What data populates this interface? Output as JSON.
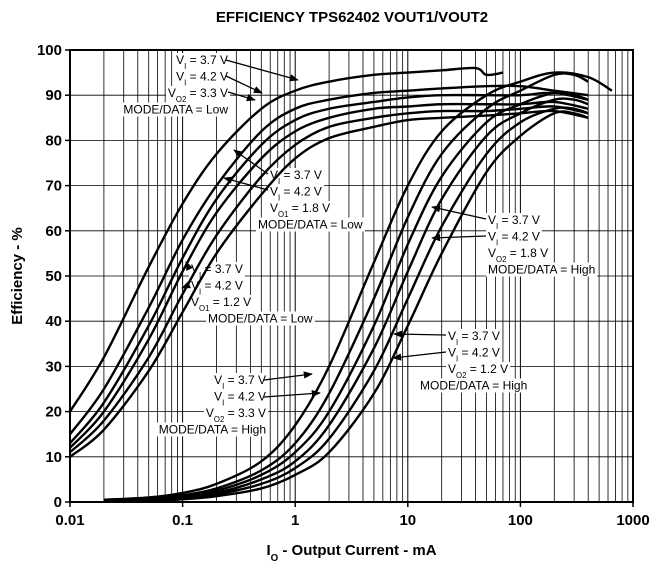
{
  "chart_data": {
    "type": "line",
    "title": "EFFICIENCY TPS62402 VOUT1/VOUT2",
    "xlabel": {
      "text": "I",
      "sub": "O",
      "tail": " - Output Current - mA"
    },
    "ylabel": "Efficiency - %",
    "xscale": "log",
    "xlim": [
      0.01,
      1000
    ],
    "xticks": [
      0.01,
      0.1,
      1,
      10,
      100,
      1000
    ],
    "ylim": [
      0,
      100
    ],
    "yticks": [
      0,
      10,
      20,
      30,
      40,
      50,
      60,
      70,
      80,
      90,
      100
    ],
    "grid": true,
    "minor_grid": true,
    "color": "#000000",
    "series": [
      {
        "x": [
          0.01,
          0.02,
          0.05,
          0.1,
          0.2,
          0.5,
          1,
          2,
          5,
          10,
          20,
          40,
          50,
          70
        ],
        "values": [
          20,
          32,
          52,
          66,
          77,
          87,
          91,
          93,
          94.5,
          95,
          95.5,
          96,
          94.5,
          95
        ]
      },
      {
        "x": [
          0.01,
          0.02,
          0.05,
          0.1,
          0.2,
          0.5,
          1,
          2,
          5,
          10,
          20,
          50,
          100,
          200,
          400
        ],
        "values": [
          15,
          25,
          43,
          58,
          70,
          82,
          87,
          89,
          90.5,
          91,
          91.5,
          92,
          92,
          91,
          90
        ]
      },
      {
        "x": [
          0.01,
          0.02,
          0.05,
          0.1,
          0.2,
          0.5,
          1,
          2,
          5,
          10,
          20,
          50,
          100,
          200,
          400
        ],
        "values": [
          13,
          22,
          39,
          54,
          67,
          79,
          84.5,
          87,
          88.5,
          89.5,
          90,
          90,
          90,
          90.5,
          89
        ]
      },
      {
        "x": [
          0.01,
          0.02,
          0.05,
          0.1,
          0.2,
          0.5,
          1,
          2,
          5,
          10,
          20,
          50,
          100,
          200,
          400
        ],
        "values": [
          12,
          20,
          36,
          51,
          64,
          76,
          82,
          85,
          87,
          87.5,
          88,
          88,
          88,
          88.5,
          87
        ]
      },
      {
        "x": [
          0.01,
          0.02,
          0.05,
          0.1,
          0.2,
          0.5,
          1,
          2,
          5,
          10,
          20,
          50,
          100,
          200,
          400
        ],
        "values": [
          11,
          18,
          32,
          46,
          59,
          72,
          79,
          83,
          85,
          86,
          86.5,
          86.5,
          87,
          87.5,
          86
        ]
      },
      {
        "x": [
          0.01,
          0.02,
          0.05,
          0.1,
          0.2,
          0.5,
          1,
          2,
          5,
          10,
          20,
          50,
          100,
          200,
          400
        ],
        "values": [
          10,
          16,
          29,
          42,
          55,
          68,
          76,
          80.5,
          83,
          84.5,
          85,
          85.5,
          86,
          86.5,
          85
        ]
      },
      {
        "x": [
          0.02,
          0.05,
          0.1,
          0.2,
          0.5,
          1,
          2,
          5,
          10,
          20,
          50,
          100,
          200,
          400,
          650
        ],
        "values": [
          0.5,
          1,
          2,
          4,
          9,
          17,
          30,
          53,
          70,
          82,
          90,
          93,
          95,
          94,
          91
        ]
      },
      {
        "x": [
          0.02,
          0.05,
          0.1,
          0.2,
          0.5,
          1,
          2,
          5,
          10,
          20,
          50,
          100,
          200,
          300,
          400
        ],
        "values": [
          0.3,
          0.7,
          1.5,
          3,
          7,
          13,
          24,
          45,
          63,
          77,
          87,
          91,
          94.5,
          94.5,
          93
        ]
      },
      {
        "x": [
          0.02,
          0.05,
          0.1,
          0.2,
          0.5,
          1,
          2,
          5,
          10,
          20,
          50,
          100,
          200,
          300,
          400
        ],
        "values": [
          0.3,
          0.6,
          1.2,
          2.5,
          6,
          11,
          20,
          39,
          57,
          72,
          84,
          88,
          90.5,
          90,
          89
        ]
      },
      {
        "x": [
          0.02,
          0.05,
          0.1,
          0.2,
          0.5,
          1,
          2,
          5,
          10,
          20,
          50,
          100,
          200,
          300,
          400
        ],
        "values": [
          0.2,
          0.5,
          1,
          2,
          5,
          9,
          17,
          34,
          51,
          67,
          81,
          86,
          89,
          89,
          88
        ]
      },
      {
        "x": [
          0.02,
          0.05,
          0.1,
          0.2,
          0.5,
          1,
          2,
          5,
          10,
          20,
          50,
          100,
          200,
          300,
          400
        ],
        "values": [
          0.2,
          0.4,
          0.8,
          1.7,
          4,
          7.5,
          14,
          29,
          45,
          61,
          77,
          84,
          87,
          87,
          86
        ]
      },
      {
        "x": [
          0.02,
          0.05,
          0.1,
          0.2,
          0.5,
          1,
          2,
          5,
          10,
          20,
          50,
          100,
          200,
          300,
          400
        ],
        "values": [
          0.1,
          0.3,
          0.6,
          1.3,
          3,
          6,
          11,
          24,
          39,
          55,
          73,
          81,
          86,
          86,
          85
        ]
      }
    ],
    "annotations": [
      {
        "lines": [
          {
            "text": "V",
            "sub": "I",
            "tail": " = 3.7 V"
          },
          {
            "text": "V",
            "sub": "I",
            "tail": " = 4.2 V"
          },
          {
            "text": "V",
            "sub": "O2",
            "tail": " = 3.3 V"
          },
          {
            "text": "MODE/DATA = Low"
          }
        ]
      },
      {
        "lines": [
          {
            "text": "V",
            "sub": "I",
            "tail": " = 3.7 V"
          },
          {
            "text": "V",
            "sub": "I",
            "tail": " = 4.2 V"
          },
          {
            "text": "V",
            "sub": "O1",
            "tail": " = 1.8 V"
          },
          {
            "text": "MODE/DATA = Low"
          }
        ]
      },
      {
        "lines": [
          {
            "text": "V",
            "sub": "I",
            "tail": " = 3.7 V"
          },
          {
            "text": "V",
            "sub": "I",
            "tail": " = 4.2 V"
          },
          {
            "text": "V",
            "sub": "O1",
            "tail": " = 1.2 V"
          },
          {
            "text": "MODE/DATA = Low"
          }
        ]
      },
      {
        "lines": [
          {
            "text": "V",
            "sub": "I",
            "tail": " = 3.7 V"
          },
          {
            "text": "V",
            "sub": "I",
            "tail": " = 4.2 V"
          },
          {
            "text": "V",
            "sub": "O2",
            "tail": " = 3.3 V"
          },
          {
            "text": "MODE/DATA = High"
          }
        ]
      },
      {
        "lines": [
          {
            "text": "V",
            "sub": "I",
            "tail": " = 3.7 V"
          },
          {
            "text": "V",
            "sub": "I",
            "tail": " = 4.2 V"
          },
          {
            "text": "V",
            "sub": "O2",
            "tail": " = 1.8 V"
          },
          {
            "text": "MODE/DATA = High"
          }
        ]
      },
      {
        "lines": [
          {
            "text": "V",
            "sub": "I",
            "tail": " = 3.7 V"
          },
          {
            "text": "V",
            "sub": "I",
            "tail": " = 4.2 V"
          },
          {
            "text": "V",
            "sub": "O2",
            "tail": " = 1.2 V"
          },
          {
            "text": "MODE/DATA = High"
          }
        ]
      }
    ]
  }
}
